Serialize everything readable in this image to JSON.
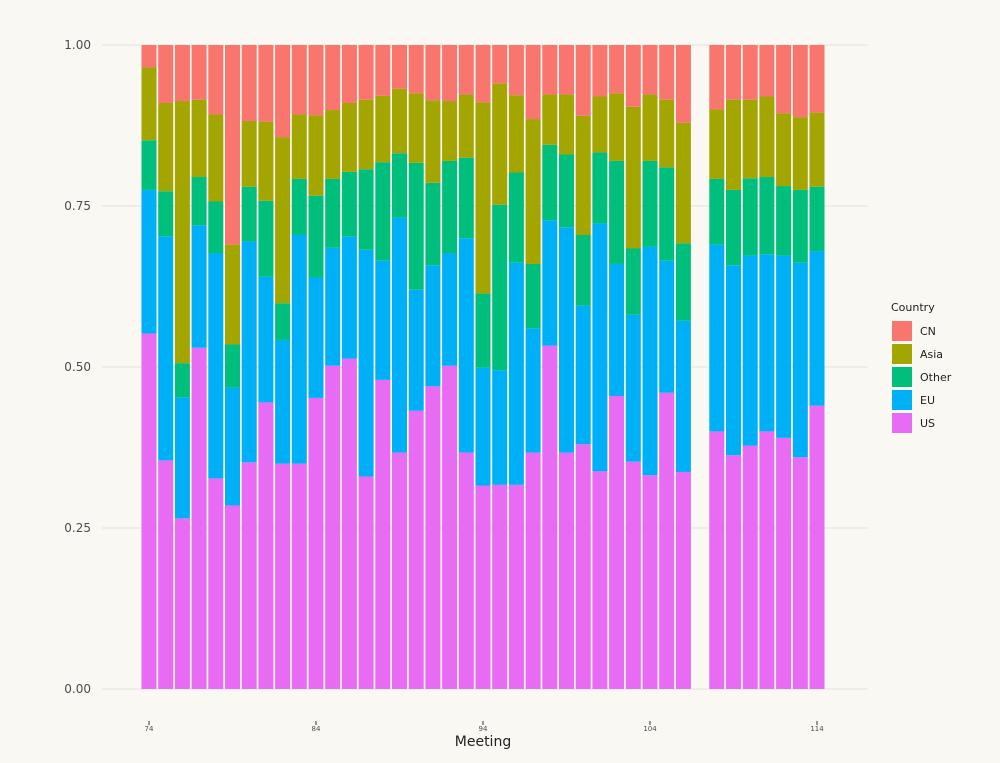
{
  "chart_data": {
    "type": "bar",
    "stacked": true,
    "normalized": true,
    "xlabel": "Meeting",
    "ylabel": "",
    "ylim": [
      0,
      1
    ],
    "yticks": [
      "0.00",
      "0.25",
      "0.50",
      "0.75",
      "1.00"
    ],
    "xticks": [
      "74",
      "84",
      "94",
      "104",
      "114"
    ],
    "grid": true,
    "legend": {
      "title": "Country",
      "position": "right"
    },
    "series_order_bottom_to_top": [
      "US",
      "EU",
      "Other",
      "Asia",
      "CN"
    ],
    "legend_order": [
      "CN",
      "Asia",
      "Other",
      "EU",
      "US"
    ],
    "colors": {
      "CN": "#f8766d",
      "Asia": "#a3a500",
      "Other": "#00bf7d",
      "EU": "#00b0f6",
      "US": "#e76bf3"
    },
    "x": [
      74,
      75,
      76,
      77,
      78,
      79,
      80,
      81,
      82,
      83,
      84,
      85,
      86,
      87,
      88,
      89,
      90,
      91,
      92,
      93,
      94,
      95,
      96,
      97,
      98,
      99,
      100,
      101,
      102,
      103,
      104,
      105,
      106,
      108,
      109,
      110,
      111,
      112,
      113,
      114
    ],
    "series": [
      {
        "name": "US",
        "values": [
          0.552,
          0.355,
          0.265,
          0.53,
          0.327,
          0.285,
          0.352,
          0.445,
          0.35,
          0.35,
          0.452,
          0.502,
          0.513,
          0.33,
          0.48,
          0.367,
          0.432,
          0.47,
          0.502,
          0.367,
          0.316,
          0.317,
          0.317,
          0.367,
          0.533,
          0.367,
          0.38,
          0.338,
          0.455,
          0.353,
          0.332,
          0.46,
          0.337,
          0.4,
          0.363,
          0.378,
          0.4,
          0.39,
          0.36,
          0.44
        ]
      },
      {
        "name": "EU",
        "values": [
          0.223,
          0.348,
          0.188,
          0.19,
          0.35,
          0.183,
          0.343,
          0.195,
          0.192,
          0.355,
          0.187,
          0.183,
          0.19,
          0.352,
          0.185,
          0.365,
          0.188,
          0.188,
          0.175,
          0.333,
          0.183,
          0.178,
          0.345,
          0.193,
          0.195,
          0.35,
          0.215,
          0.385,
          0.205,
          0.228,
          0.355,
          0.205,
          0.235,
          0.29,
          0.295,
          0.295,
          0.275,
          0.283,
          0.302,
          0.24
        ]
      },
      {
        "name": "Other",
        "values": [
          0.077,
          0.07,
          0.053,
          0.075,
          0.08,
          0.067,
          0.085,
          0.118,
          0.057,
          0.087,
          0.127,
          0.107,
          0.1,
          0.125,
          0.153,
          0.1,
          0.197,
          0.128,
          0.143,
          0.125,
          0.115,
          0.257,
          0.14,
          0.1,
          0.117,
          0.113,
          0.11,
          0.11,
          0.16,
          0.103,
          0.133,
          0.145,
          0.12,
          0.102,
          0.117,
          0.12,
          0.12,
          0.108,
          0.113,
          0.1
        ]
      },
      {
        "name": "Asia",
        "values": [
          0.113,
          0.137,
          0.407,
          0.12,
          0.135,
          0.155,
          0.102,
          0.123,
          0.258,
          0.1,
          0.125,
          0.107,
          0.107,
          0.108,
          0.103,
          0.1,
          0.108,
          0.128,
          0.093,
          0.098,
          0.297,
          0.188,
          0.12,
          0.225,
          0.078,
          0.093,
          0.185,
          0.087,
          0.105,
          0.22,
          0.103,
          0.105,
          0.187,
          0.108,
          0.14,
          0.122,
          0.125,
          0.113,
          0.113,
          0.115
        ]
      },
      {
        "name": "CN",
        "values": [
          0.035,
          0.09,
          0.087,
          0.085,
          0.108,
          0.31,
          0.118,
          0.119,
          0.143,
          0.108,
          0.109,
          0.101,
          0.09,
          0.085,
          0.079,
          0.068,
          0.075,
          0.086,
          0.087,
          0.077,
          0.089,
          0.06,
          0.078,
          0.115,
          0.077,
          0.077,
          0.11,
          0.08,
          0.075,
          0.096,
          0.077,
          0.085,
          0.121,
          0.1,
          0.085,
          0.085,
          0.08,
          0.106,
          0.112,
          0.105
        ]
      }
    ]
  }
}
